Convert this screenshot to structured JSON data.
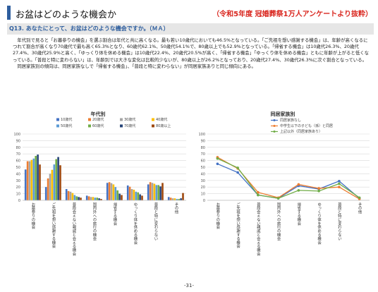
{
  "header": {
    "title": "お盆はどのような機会か",
    "source": "（令和5年度 冠婚葬祭1万人アンケートより抜粋）"
  },
  "question": "Q13. あなたにとって、お盆はどのような機会ですか。（ＭＡ）",
  "body": [
    "　年代別で見ると「お墓参りの機会」を選ぶ割合は年代と共に高くなる。最も若い10歳代においても46.5%となっている。「ご先祖を想い感謝する機会」は、年齢が高くなるにつれて割合が高くなり70歳代で最も高く65.3%となり、60歳代62.1%、50歳代54.1%で、80歳以上でも52.9%となっている。「帰省する機会」は10歳代26.3%、20歳代27.4%、30歳代25.9%と高く、「ゆっくり体を休める機会」は10歳代22.4%、20歳代20.5%が高く、「帰省する機会」「ゆっくり体を休める機会」ともに年齢が上がると低くなっている。「普段と特に変わらない」は、年齢別では大きな変化は比較的少ないが、80歳以上が26.2%となっており、20歳代27.4%、30歳代26.3%に次ぐ割合となっている。",
    "　同居家族別の傾向は、同居家族なしで「帰省する機会」、「普段と特に変わらない」が同居家族ありと同じ傾向にある。"
  ],
  "page_number": "-31-",
  "chart_data": [
    {
      "type": "bar",
      "title": "年代別",
      "categories": [
        "お墓参りの機会",
        "ご先祖を想い感謝する機会",
        "普段会えない親戚と会える機会",
        "国内外への旅行の機会",
        "帰省する機会",
        "ゆっくり体を休める機会",
        "普段と特に変わらない",
        "その他"
      ],
      "ylim": [
        0,
        100
      ],
      "yticks": [
        0,
        10,
        20,
        30,
        40,
        50,
        60,
        70,
        80,
        90,
        100
      ],
      "legend_position": "top",
      "series": [
        {
          "name": "10歳代",
          "color": "#4472c4",
          "values": [
            46.5,
            20.0,
            17.0,
            7.0,
            26.3,
            22.4,
            24.0,
            5.0
          ]
        },
        {
          "name": "20歳代",
          "color": "#ed7d31",
          "values": [
            59.0,
            33.0,
            14.0,
            6.0,
            27.4,
            20.5,
            27.4,
            4.0
          ]
        },
        {
          "name": "30歳代",
          "color": "#a5a5a5",
          "values": [
            59.0,
            40.0,
            13.0,
            5.0,
            25.9,
            17.0,
            26.3,
            3.0
          ]
        },
        {
          "name": "40歳代",
          "color": "#ffc000",
          "values": [
            61.0,
            46.0,
            11.0,
            5.0,
            24.0,
            16.0,
            25.0,
            3.0
          ]
        },
        {
          "name": "50歳代",
          "color": "#5b9bd5",
          "values": [
            63.0,
            54.1,
            8.0,
            4.0,
            20.0,
            13.0,
            23.0,
            2.0
          ]
        },
        {
          "name": "60歳代",
          "color": "#70ad47",
          "values": [
            67.0,
            62.1,
            6.0,
            4.0,
            15.0,
            12.0,
            23.0,
            2.0
          ]
        },
        {
          "name": "70歳代",
          "color": "#264478",
          "values": [
            69.0,
            65.3,
            5.0,
            3.0,
            10.0,
            9.0,
            21.0,
            3.0
          ]
        },
        {
          "name": "80歳以上",
          "color": "#9e480e",
          "values": [
            54.0,
            52.9,
            4.0,
            2.0,
            8.0,
            7.0,
            26.2,
            11.0
          ]
        }
      ]
    },
    {
      "type": "line",
      "title": "同居家族別",
      "categories": [
        "お墓参りの機会",
        "ご先祖を想い感謝する機会",
        "普段会えない親戚と会える機会",
        "国内外への旅行の機会",
        "帰省する機会",
        "ゆっくり体を休める機会",
        "普段と特に変わらない",
        "その他"
      ],
      "ylim": [
        0,
        100
      ],
      "yticks": [
        0,
        10,
        20,
        30,
        40,
        50,
        60,
        70,
        80,
        90,
        100
      ],
      "legend_position": "top",
      "series": [
        {
          "name": "同居家族なし",
          "color": "#4472c4",
          "values": [
            55.0,
            42.0,
            8.0,
            3.0,
            22.0,
            17.0,
            29.0,
            3.0
          ]
        },
        {
          "name": "中学生以下の子ども（孫）と同居",
          "color": "#ed7d31",
          "values": [
            65.0,
            48.0,
            12.0,
            4.0,
            24.0,
            18.0,
            20.0,
            2.0
          ]
        },
        {
          "name": "上記以外（同居家族あり）",
          "color": "#70ad47",
          "values": [
            63.0,
            49.0,
            8.0,
            3.0,
            15.0,
            14.0,
            25.0,
            4.0
          ]
        }
      ]
    }
  ]
}
